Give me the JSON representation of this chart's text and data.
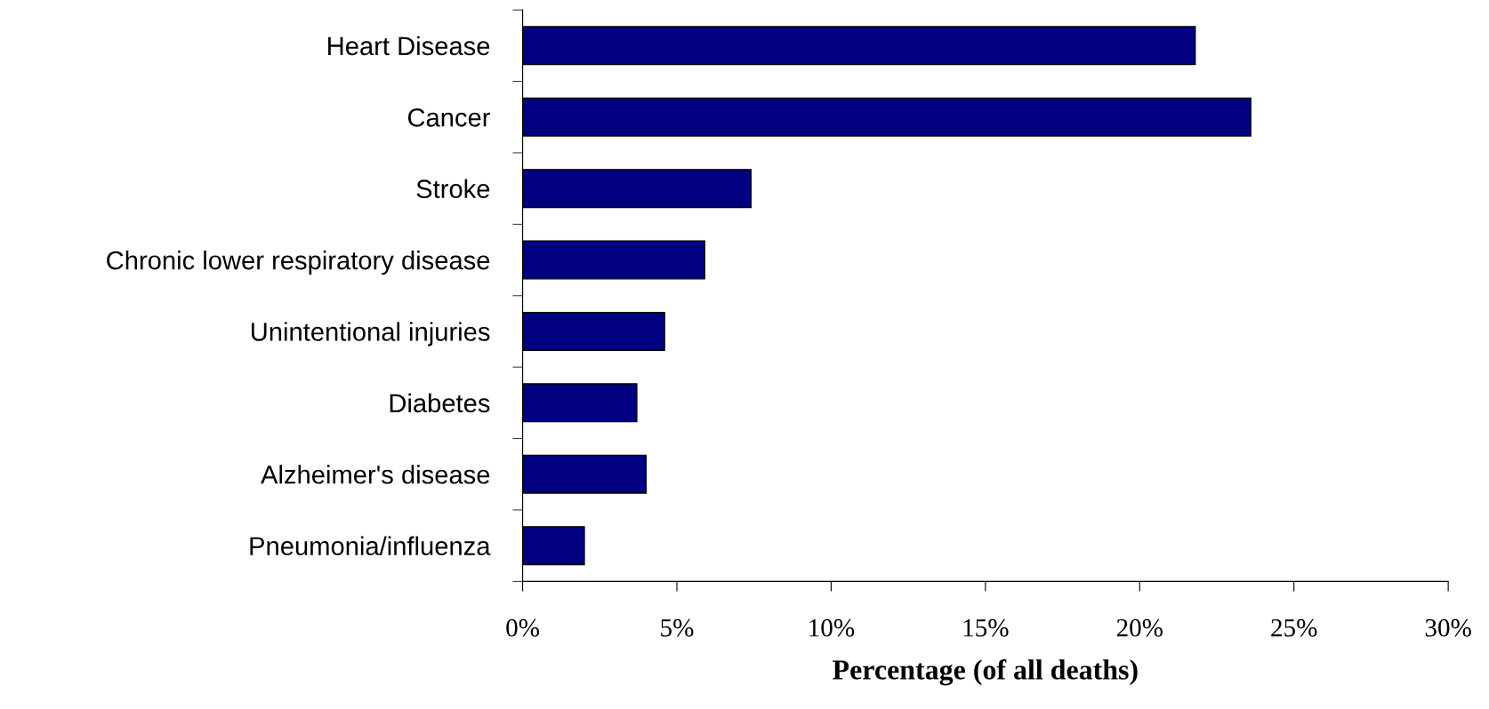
{
  "chart_data": {
    "type": "bar",
    "orientation": "horizontal",
    "xlabel": "Percentage (of all deaths)",
    "categories": [
      "Heart Disease",
      "Cancer",
      "Stroke",
      "Chronic lower respiratory disease",
      "Unintentional injuries",
      "Diabetes",
      "Alzheimer's disease",
      "Pneumonia/influenza"
    ],
    "values": [
      21.8,
      23.6,
      7.4,
      5.9,
      4.6,
      3.7,
      4.0,
      2.0
    ],
    "color": "#000080",
    "xlim": [
      0,
      30
    ],
    "xticks": [
      {
        "value": 0,
        "label": "0%"
      },
      {
        "value": 5,
        "label": "5%"
      },
      {
        "value": 10,
        "label": "10%"
      },
      {
        "value": 15,
        "label": "15%"
      },
      {
        "value": 20,
        "label": "20%"
      },
      {
        "value": 25,
        "label": "25%"
      },
      {
        "value": 30,
        "label": "30%"
      }
    ],
    "grid": false,
    "legend": false
  }
}
